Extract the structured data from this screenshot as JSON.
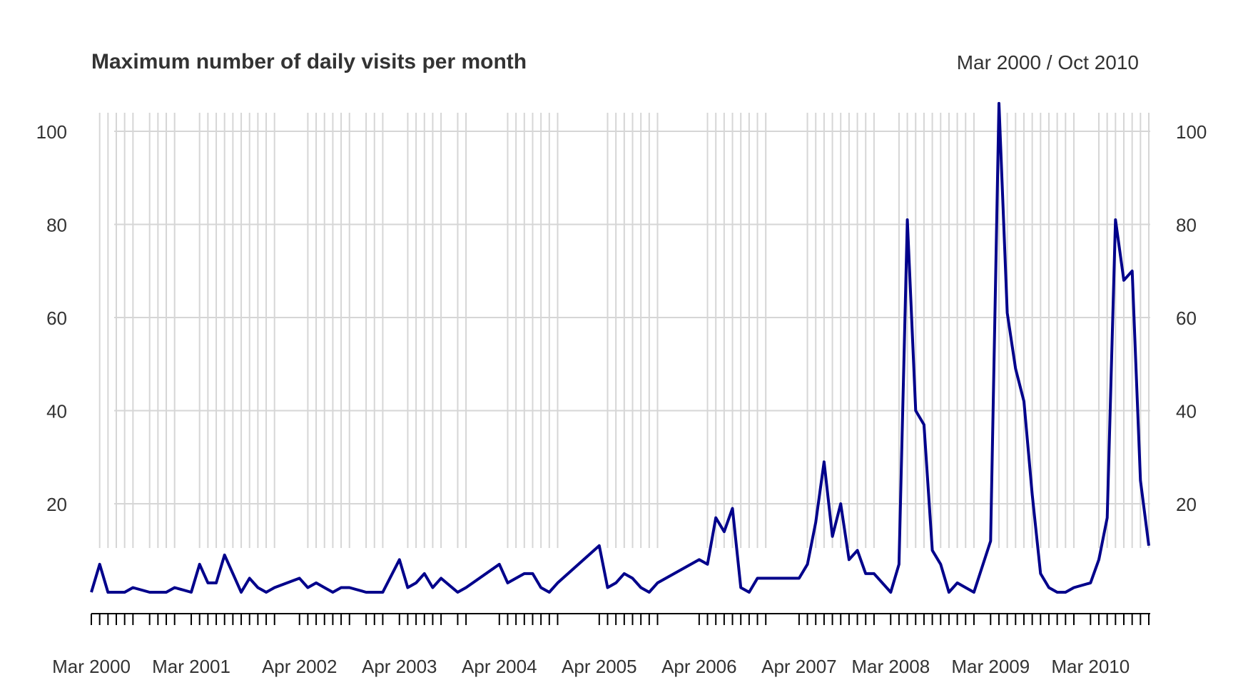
{
  "chart_data": {
    "type": "line",
    "title": "Maximum number of daily visits per month",
    "date_range_label": "Mar 2000 / Oct 2010",
    "xlabel": "",
    "ylabel": "",
    "ylim": [
      0,
      105
    ],
    "yticks": [
      20,
      40,
      60,
      80,
      100
    ],
    "ytick_labels": [
      "20",
      "40",
      "60",
      "80",
      "100"
    ],
    "xtick_labels": [
      "Mar 2000",
      "Mar 2001",
      "Apr 2002",
      "Apr 2003",
      "Apr 2004",
      "Apr 2005",
      "Apr 2006",
      "Apr 2007",
      "Mar 2008",
      "Mar 2009",
      "Mar 2010"
    ],
    "grid": true,
    "line_color": "#00008B",
    "months": [
      "2000-03",
      "2000-04",
      "2000-05",
      "2000-06",
      "2000-07",
      "2000-08",
      "2000-10",
      "2000-11",
      "2000-12",
      "2001-01",
      "2001-03",
      "2001-04",
      "2001-05",
      "2001-06",
      "2001-07",
      "2001-08",
      "2001-09",
      "2001-10",
      "2001-11",
      "2001-12",
      "2002-01",
      "2002-04",
      "2002-05",
      "2002-06",
      "2002-07",
      "2002-08",
      "2002-09",
      "2002-10",
      "2002-12",
      "2003-01",
      "2003-02",
      "2003-04",
      "2003-05",
      "2003-06",
      "2003-07",
      "2003-08",
      "2003-09",
      "2003-11",
      "2003-12",
      "2004-04",
      "2004-05",
      "2004-06",
      "2004-07",
      "2004-08",
      "2004-09",
      "2004-10",
      "2004-11",
      "2005-04",
      "2005-05",
      "2005-06",
      "2005-07",
      "2005-08",
      "2005-09",
      "2005-10",
      "2005-11",
      "2006-04",
      "2006-05",
      "2006-06",
      "2006-07",
      "2006-08",
      "2006-09",
      "2006-10",
      "2006-11",
      "2006-12",
      "2007-04",
      "2007-05",
      "2007-06",
      "2007-07",
      "2007-08",
      "2007-09",
      "2007-10",
      "2007-11",
      "2007-12",
      "2008-01",
      "2008-03",
      "2008-04",
      "2008-05",
      "2008-06",
      "2008-07",
      "2008-08",
      "2008-09",
      "2008-10",
      "2008-11",
      "2008-12",
      "2009-01",
      "2009-03",
      "2009-04",
      "2009-05",
      "2009-06",
      "2009-07",
      "2009-08",
      "2009-09",
      "2009-10",
      "2009-11",
      "2009-12",
      "2010-01",
      "2010-03",
      "2010-04",
      "2010-05",
      "2010-06",
      "2010-07",
      "2010-08",
      "2010-09",
      "2010-10"
    ],
    "values": [
      1,
      7,
      1,
      1,
      1,
      2,
      1,
      1,
      1,
      2,
      1,
      7,
      3,
      3,
      9,
      5,
      1,
      4,
      2,
      1,
      2,
      4,
      2,
      3,
      2,
      1,
      2,
      2,
      1,
      1,
      1,
      8,
      2,
      3,
      5,
      2,
      4,
      1,
      2,
      7,
      3,
      4,
      5,
      5,
      2,
      1,
      3,
      11,
      2,
      3,
      5,
      4,
      2,
      1,
      3,
      8,
      7,
      17,
      14,
      19,
      2,
      1,
      4,
      4,
      4,
      7,
      16,
      29,
      13,
      20,
      8,
      10,
      5,
      5,
      1,
      7,
      81,
      40,
      37,
      10,
      7,
      1,
      3,
      2,
      1,
      12,
      106,
      61,
      49,
      42,
      22,
      5,
      2,
      1,
      1,
      2,
      3,
      8,
      17,
      81,
      68,
      70,
      25,
      11
    ]
  }
}
